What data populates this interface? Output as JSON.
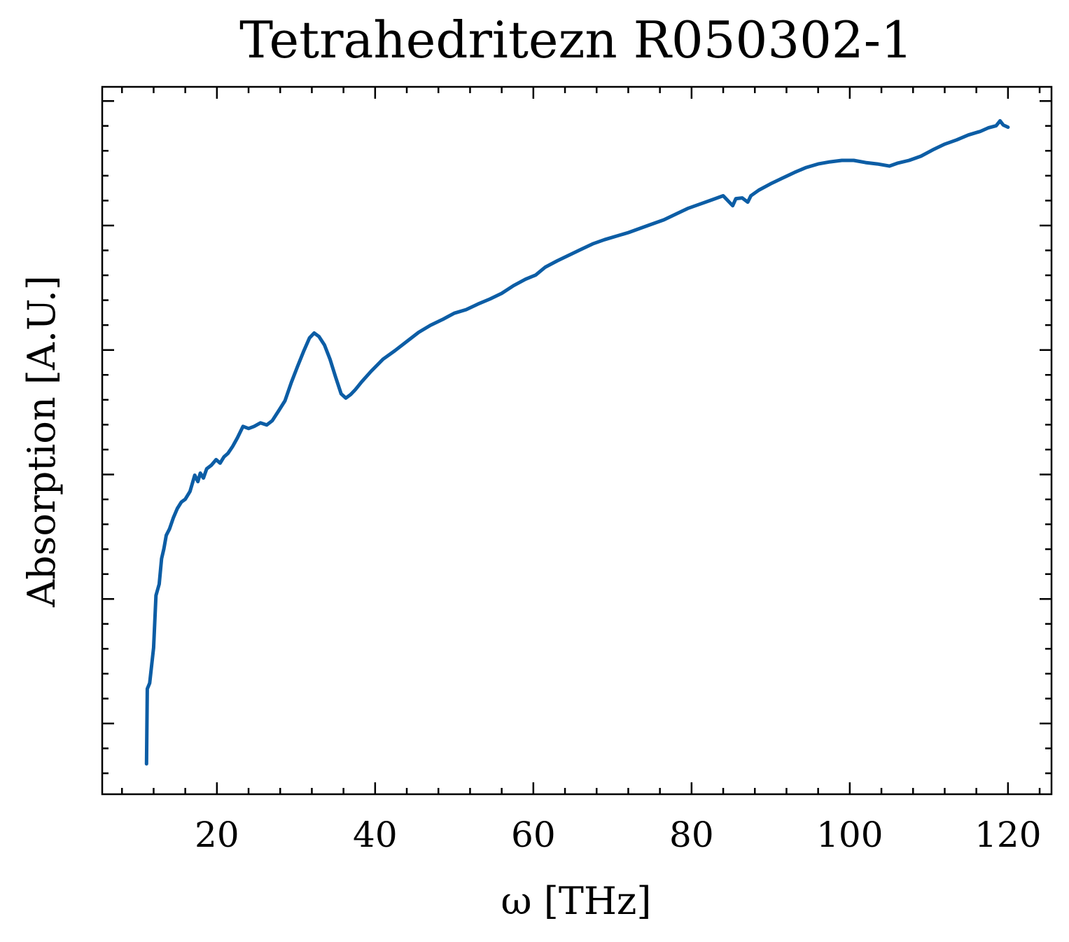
{
  "chart_data": {
    "type": "line",
    "title": "Tetrahedritezn R050302-1",
    "xlabel": "ω [THz]",
    "ylabel": "Absorption [A.U.]",
    "xlim": [
      5.5,
      125.5
    ],
    "ylim": [
      0,
      1
    ],
    "xticks": [
      20,
      40,
      60,
      80,
      100,
      120
    ],
    "x_minor_step": 4,
    "grid": false,
    "legend": "none",
    "y_tick_labels": "none",
    "line_color": "#0c5da5",
    "series": [
      {
        "x": [
          11.1,
          11.2,
          11.5,
          12.0,
          12.3,
          12.7,
          13.0,
          13.3,
          13.6,
          14.0,
          14.5,
          15.0,
          15.5,
          16.0,
          16.6,
          17.2,
          17.6,
          17.9,
          18.3,
          18.7,
          19.3,
          19.9,
          20.4,
          20.9,
          21.4,
          22.0,
          22.6,
          23.3,
          24.0,
          24.7,
          25.5,
          26.3,
          27.0,
          27.8,
          28.6,
          29.4,
          30.2,
          31.0,
          31.7,
          32.3,
          32.9,
          33.6,
          34.3,
          35.0,
          35.7,
          36.3,
          36.9,
          37.5,
          38.3,
          39.5,
          41.0,
          42.5,
          44.0,
          45.5,
          47.0,
          48.5,
          50.0,
          51.5,
          53.0,
          54.5,
          56.0,
          57.5,
          59.0,
          60.3,
          61.5,
          63.0,
          64.5,
          66.0,
          67.5,
          69.0,
          70.5,
          72.0,
          73.5,
          75.0,
          76.5,
          78.0,
          79.5,
          81.0,
          82.5,
          84.0,
          85.2,
          85.6,
          86.4,
          87.1,
          87.5,
          88.5,
          90.0,
          91.5,
          93.0,
          94.5,
          96.0,
          97.5,
          99.0,
          100.5,
          102.0,
          103.5,
          105.0,
          106.0,
          107.5,
          109.0,
          110.5,
          112.0,
          113.5,
          115.0,
          116.5,
          117.5,
          118.5,
          119.0,
          119.4,
          120.0
        ],
        "y": [
          0.043,
          0.149,
          0.157,
          0.207,
          0.281,
          0.297,
          0.333,
          0.347,
          0.366,
          0.375,
          0.391,
          0.404,
          0.413,
          0.417,
          0.428,
          0.451,
          0.442,
          0.454,
          0.447,
          0.46,
          0.465,
          0.473,
          0.468,
          0.477,
          0.482,
          0.492,
          0.504,
          0.52,
          0.517,
          0.52,
          0.525,
          0.522,
          0.528,
          0.542,
          0.556,
          0.582,
          0.605,
          0.627,
          0.645,
          0.652,
          0.647,
          0.635,
          0.615,
          0.59,
          0.566,
          0.56,
          0.565,
          0.572,
          0.583,
          0.598,
          0.615,
          0.627,
          0.64,
          0.653,
          0.663,
          0.671,
          0.68,
          0.685,
          0.693,
          0.7,
          0.708,
          0.719,
          0.728,
          0.734,
          0.745,
          0.754,
          0.762,
          0.77,
          0.778,
          0.784,
          0.789,
          0.794,
          0.8,
          0.806,
          0.812,
          0.82,
          0.828,
          0.834,
          0.84,
          0.846,
          0.832,
          0.842,
          0.843,
          0.837,
          0.846,
          0.854,
          0.863,
          0.871,
          0.879,
          0.886,
          0.891,
          0.894,
          0.896,
          0.896,
          0.893,
          0.891,
          0.888,
          0.892,
          0.896,
          0.902,
          0.911,
          0.919,
          0.925,
          0.932,
          0.937,
          0.942,
          0.945,
          0.952,
          0.946,
          0.943
        ]
      }
    ]
  }
}
